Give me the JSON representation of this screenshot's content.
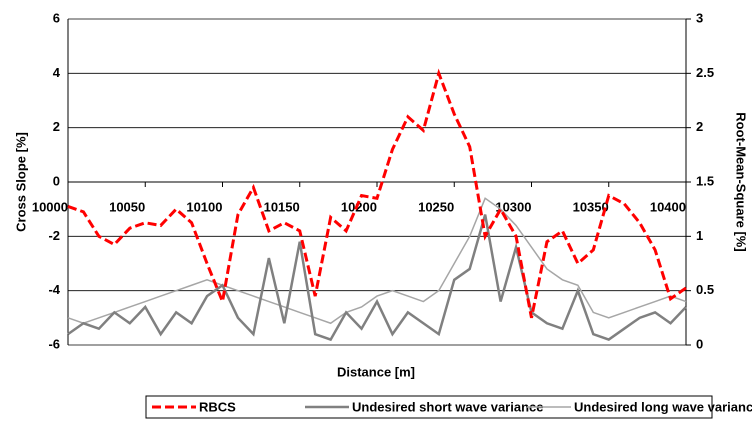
{
  "chart_data": {
    "type": "line",
    "xlabel": "Distance [m]",
    "ylabel": "Cross Slope [%]",
    "y2label": "Root-Mean-Square [%]",
    "x": [
      10000,
      10010,
      10020,
      10030,
      10040,
      10050,
      10060,
      10070,
      10080,
      10090,
      10100,
      10110,
      10120,
      10130,
      10140,
      10150,
      10160,
      10170,
      10180,
      10190,
      10200,
      10210,
      10220,
      10230,
      10240,
      10250,
      10260,
      10270,
      10280,
      10290,
      10300,
      10310,
      10320,
      10330,
      10340,
      10350,
      10360,
      10370,
      10380,
      10390,
      10400
    ],
    "series": [
      {
        "name": "RBCS",
        "color": "#ff0000",
        "dash": true,
        "values": [
          -0.9,
          -1.1,
          -2.0,
          -2.3,
          -1.7,
          -1.5,
          -1.6,
          -1.0,
          -1.5,
          -3.0,
          -4.4,
          -1.2,
          -0.2,
          -1.8,
          -1.5,
          -1.8,
          -4.2,
          -1.3,
          -1.8,
          -0.5,
          -0.6,
          1.2,
          2.4,
          1.9,
          4.0,
          2.5,
          1.3,
          -2.0,
          -1.0,
          -2.0,
          -5.0,
          -2.2,
          -1.8,
          -3.0,
          -2.5,
          -0.5,
          -0.8,
          -1.5,
          -2.5,
          -4.3,
          -3.9
        ]
      },
      {
        "name": "Undesired short wave variance",
        "color": "#808080",
        "axis": "y2",
        "width": 2.5,
        "values": [
          0.1,
          0.2,
          0.15,
          0.3,
          0.2,
          0.35,
          0.1,
          0.3,
          0.2,
          0.45,
          0.55,
          0.25,
          0.1,
          0.8,
          0.2,
          0.95,
          0.1,
          0.05,
          0.3,
          0.15,
          0.4,
          0.1,
          0.3,
          0.2,
          0.1,
          0.6,
          0.7,
          1.2,
          0.4,
          0.9,
          0.3,
          0.2,
          0.15,
          0.5,
          0.1,
          0.05,
          0.15,
          0.25,
          0.3,
          0.2,
          0.35
        ]
      },
      {
        "name": "Undesired long wave variance",
        "color": "#a6a6a6",
        "axis": "y2",
        "width": 1.5,
        "values": [
          0.25,
          0.2,
          0.25,
          0.3,
          0.35,
          0.4,
          0.45,
          0.5,
          0.55,
          0.6,
          0.55,
          0.5,
          0.45,
          0.4,
          0.35,
          0.3,
          0.25,
          0.2,
          0.3,
          0.35,
          0.45,
          0.5,
          0.45,
          0.4,
          0.5,
          0.75,
          1.0,
          1.35,
          1.25,
          1.1,
          0.9,
          0.7,
          0.6,
          0.55,
          0.3,
          0.25,
          0.3,
          0.35,
          0.4,
          0.45,
          0.4
        ]
      }
    ],
    "xlim": [
      10000,
      10400
    ],
    "xticks": [
      10000,
      10050,
      10100,
      10150,
      10200,
      10250,
      10300,
      10350,
      10400
    ],
    "ylim": [
      -6,
      6
    ],
    "yticks": [
      -6,
      -4,
      -2,
      0,
      2,
      4,
      6
    ],
    "y2lim": [
      0,
      3
    ],
    "y2ticks": [
      0,
      0.5,
      1,
      1.5,
      2,
      2.5,
      3
    ],
    "grid": true,
    "legend": "bottom"
  }
}
